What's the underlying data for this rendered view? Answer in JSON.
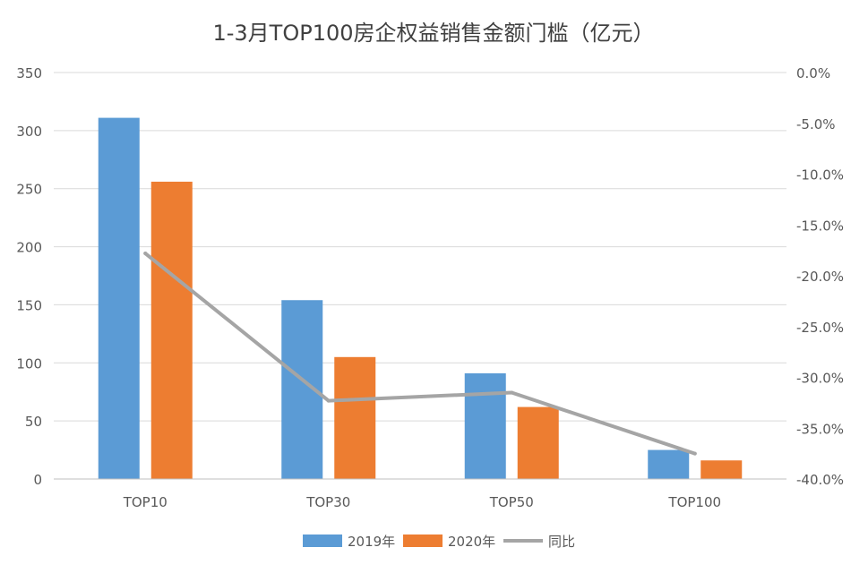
{
  "chart_data": {
    "type": "bar",
    "title": "1-3月TOP100房企权益销售金额门槛（亿元）",
    "categories": [
      "TOP10",
      "TOP30",
      "TOP50",
      "TOP100"
    ],
    "series": [
      {
        "name": "2019年",
        "type": "bar",
        "axis": "left",
        "color": "#5B9BD5",
        "values": [
          311,
          154,
          91,
          25
        ]
      },
      {
        "name": "2020年",
        "type": "bar",
        "axis": "left",
        "color": "#ED7D31",
        "values": [
          256,
          105,
          62,
          16
        ]
      },
      {
        "name": "同比",
        "type": "line",
        "axis": "right",
        "color": "#A5A5A5",
        "values": [
          -17.8,
          -32.3,
          -31.5,
          -37.5
        ]
      }
    ],
    "y_left": {
      "min": 0,
      "max": 350,
      "step": 50,
      "ticks": [
        "0",
        "50",
        "100",
        "150",
        "200",
        "250",
        "300",
        "350"
      ]
    },
    "y_right": {
      "min": -40,
      "max": 0,
      "step": 5,
      "ticks": [
        "-40.0%",
        "-35.0%",
        "-30.0%",
        "-25.0%",
        "-20.0%",
        "-15.0%",
        "-10.0%",
        "-5.0%",
        "0.0%"
      ]
    },
    "grid": true,
    "legend_position": "bottom",
    "xlabel": "",
    "ylabel": ""
  }
}
